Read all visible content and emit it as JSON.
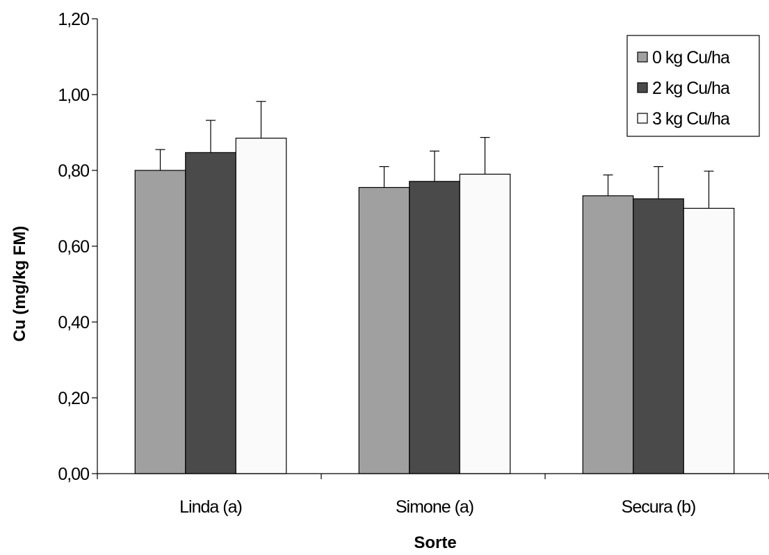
{
  "chart_data": {
    "type": "bar",
    "title": "",
    "xlabel": "Sorte",
    "ylabel": "Cu (mg/kg FM)",
    "ylim": [
      0,
      1.2
    ],
    "yticks": [
      "0,00",
      "0,20",
      "0,40",
      "0,60",
      "0,80",
      "1,00",
      "1,20"
    ],
    "categories": [
      "Linda (a)",
      "Simone (a)",
      "Secura (b)"
    ],
    "series": [
      {
        "name": "0 kg Cu/ha",
        "color": "#A0A0A0",
        "values": [
          0.8,
          0.755,
          0.733
        ],
        "errors": [
          0.055,
          0.055,
          0.055
        ]
      },
      {
        "name": "2 kg Cu/ha",
        "color": "#4A4A4A",
        "values": [
          0.847,
          0.771,
          0.725
        ],
        "errors": [
          0.085,
          0.08,
          0.085
        ]
      },
      {
        "name": "3 kg Cu/ha",
        "color": "#FAFAFA",
        "values": [
          0.885,
          0.79,
          0.7
        ],
        "errors": [
          0.097,
          0.097,
          0.098
        ]
      }
    ],
    "legend_position": "top-right",
    "grid": false,
    "error_bars": "upper"
  }
}
